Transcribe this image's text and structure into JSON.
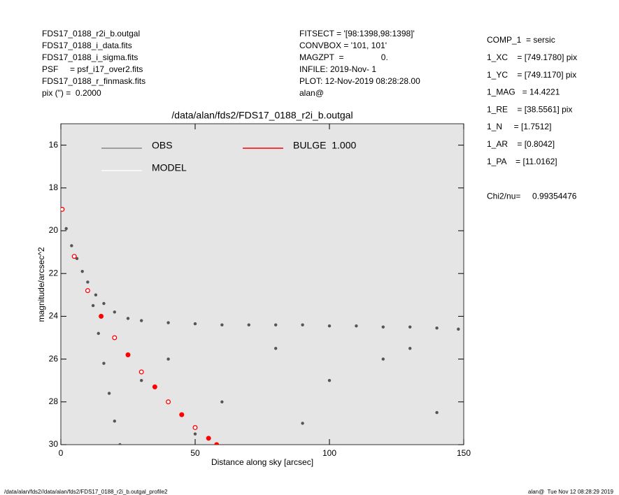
{
  "header": {
    "left": [
      "FDS17_0188_r2i_b.outgal",
      "FDS17_0188_i_data.fits",
      "FDS17_0188_i_sigma.fits",
      "PSF     = psf_i17_over2.fits",
      "FDS17_0188_r_finmask.fits",
      "pix (\") =  0.2000"
    ],
    "middle": [
      "FITSECT = '[98:1398,98:1398]'",
      "CONVBOX = '101, 101'",
      "MAGZPT  =                0.",
      "INFILE: 2019-Nov- 1",
      "PLOT: 12-Nov-2019 08:28:28.00",
      "alan@"
    ],
    "right": [
      "COMP_1  = sersic",
      "1_XC    = [749.1780] pix",
      "1_YC    = [749.1170] pix",
      "1_MAG   = 14.4221",
      "1_RE    = [38.5561] pix",
      "1_N     = [1.7512]",
      "1_AR    = [0.8042]",
      "1_PA    = [11.0162]",
      "Chi2/nu=     0.99354476"
    ],
    "footer_left": "/data/alan/fds2//data/alan/fds2/FDS17_0188_r2i_b.outgal_profile2",
    "footer_right": "alan@  Tue Nov 12 08:28:29 2019"
  },
  "chart_data": {
    "type": "scatter",
    "title": "/data/alan/fds2/FDS17_0188_r2i_b.outgal",
    "xlabel": "Distance along sky [arcsec]",
    "ylabel": "magnitude/arcsec^2",
    "xlim": [
      0,
      150
    ],
    "xticks": [
      0,
      50,
      100,
      150
    ],
    "ylim": [
      15,
      30
    ],
    "yticks": [
      16,
      18,
      20,
      22,
      24,
      26,
      28,
      30
    ],
    "y_inverted": true,
    "background": "#e5e5e5",
    "series": [
      {
        "name": "OBS",
        "color": "#555555",
        "x": [
          0.5,
          2,
          4,
          6,
          8,
          10,
          13,
          16,
          20,
          25,
          30,
          40,
          50,
          60,
          70,
          80,
          90,
          100,
          110,
          120,
          130,
          140,
          148,
          12,
          14,
          16,
          18,
          20,
          22,
          30,
          40,
          60,
          80,
          100,
          120,
          140,
          50,
          90,
          130
        ],
        "values": [
          19.0,
          19.9,
          20.7,
          21.3,
          21.9,
          22.4,
          23.0,
          23.4,
          23.8,
          24.1,
          24.2,
          24.3,
          24.35,
          24.4,
          24.4,
          24.4,
          24.4,
          24.45,
          24.45,
          24.5,
          24.5,
          24.55,
          24.6,
          23.5,
          24.8,
          26.2,
          27.6,
          28.9,
          30.0,
          27,
          26,
          28,
          25.5,
          27,
          26,
          28.5,
          29.5,
          29,
          25.5
        ]
      },
      {
        "name": "BULGE  1.000",
        "color": "#ff0000",
        "x": [
          0.5,
          5,
          10,
          15,
          20,
          25,
          30,
          35,
          40,
          45,
          50,
          55,
          58
        ],
        "values": [
          19.0,
          21.2,
          22.8,
          24.0,
          25.0,
          25.8,
          26.6,
          27.3,
          28.0,
          28.6,
          29.2,
          29.7,
          30.0
        ]
      },
      {
        "name": "MODEL",
        "color": "#ffffff",
        "x": [
          0.5,
          5,
          10,
          20,
          30,
          40,
          50
        ],
        "values": [
          19.0,
          21.2,
          22.8,
          25.0,
          26.6,
          28.0,
          29.2
        ]
      }
    ]
  }
}
